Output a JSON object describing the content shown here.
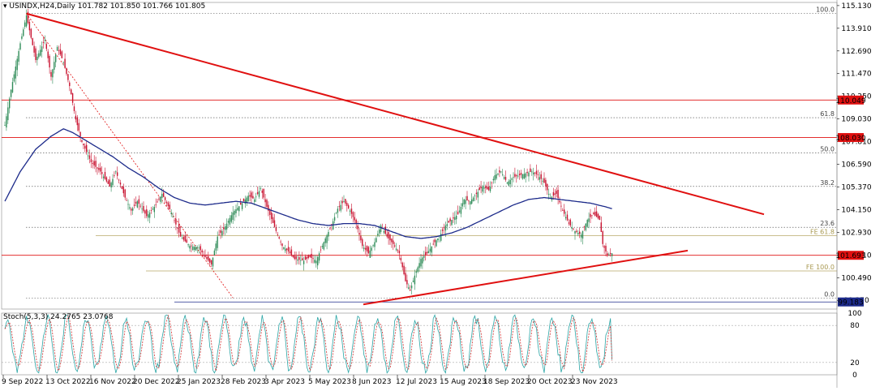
{
  "header": {
    "title": "USINDX,H24,Daily  101.782 101.850 101.766 101.805"
  },
  "colors": {
    "bull": "#2e8b57",
    "bear": "#c8102e",
    "ma": "#1c2a8a",
    "trend": "#e01010",
    "fib_dot": "#444444",
    "fe_line": "#b8a968",
    "hline": "#e01010",
    "stoch_main": "#2aa5a5",
    "stoch_signal": "#d03030"
  },
  "chart_data": {
    "type": "candlestick",
    "symbol": "USINDX,H24,Daily",
    "ohlc_last": {
      "open": 101.782,
      "high": 101.85,
      "low": 101.766,
      "close": 101.805
    },
    "ylim": [
      98.8,
      115.3
    ],
    "y_ticks": [
      "115.130",
      "113.910",
      "112.690",
      "111.470",
      "110.250",
      "109.030",
      "107.810",
      "106.590",
      "105.370",
      "104.150",
      "102.930",
      "101.710",
      "100.490",
      "99.270"
    ],
    "x_labels": [
      "9 Sep 2022",
      "13 Oct 2022",
      "16 Nov 2022",
      "20 Dec 2022",
      "25 Jan 2023",
      "28 Feb 2023",
      "3 Apr 2023",
      "5 May 2023",
      "8 Jun 2023",
      "12 Jul 2023",
      "15 Aug 2023",
      "18 Sep 2023",
      "20 Oct 2023",
      "23 Nov 2023"
    ],
    "price_anchors": [
      [
        0,
        108.7
      ],
      [
        4,
        110.6
      ],
      [
        10,
        113.1
      ],
      [
        14,
        114.6
      ],
      [
        20,
        112.2
      ],
      [
        26,
        113.3
      ],
      [
        30,
        111.3
      ],
      [
        34,
        112.9
      ],
      [
        38,
        112.1
      ],
      [
        42,
        110.8
      ],
      [
        46,
        109.0
      ],
      [
        50,
        107.8
      ],
      [
        56,
        106.7
      ],
      [
        62,
        106.2
      ],
      [
        68,
        105.4
      ],
      [
        72,
        106.2
      ],
      [
        78,
        104.8
      ],
      [
        82,
        104.1
      ],
      [
        86,
        104.6
      ],
      [
        92,
        103.8
      ],
      [
        98,
        104.4
      ],
      [
        102,
        105.0
      ],
      [
        108,
        104.0
      ],
      [
        114,
        102.7
      ],
      [
        120,
        102.2
      ],
      [
        126,
        102.1
      ],
      [
        130,
        101.6
      ],
      [
        134,
        101.2
      ],
      [
        138,
        102.7
      ],
      [
        142,
        103.1
      ],
      [
        148,
        104.0
      ],
      [
        154,
        104.5
      ],
      [
        158,
        104.9
      ],
      [
        162,
        104.7
      ],
      [
        166,
        105.3
      ],
      [
        170,
        104.3
      ],
      [
        176,
        103.0
      ],
      [
        180,
        102.2
      ],
      [
        184,
        101.9
      ],
      [
        188,
        101.5
      ],
      [
        194,
        101.4
      ],
      [
        198,
        101.6
      ],
      [
        202,
        101.4
      ],
      [
        208,
        102.6
      ],
      [
        212,
        103.3
      ],
      [
        216,
        104.2
      ],
      [
        220,
        104.6
      ],
      [
        224,
        104.1
      ],
      [
        228,
        103.4
      ],
      [
        232,
        102.2
      ],
      [
        236,
        101.8
      ],
      [
        240,
        102.4
      ],
      [
        244,
        103.3
      ],
      [
        248,
        102.7
      ],
      [
        252,
        102.3
      ],
      [
        256,
        101.8
      ],
      [
        260,
        100.3
      ],
      [
        263,
        99.8
      ],
      [
        266,
        100.6
      ],
      [
        270,
        101.5
      ],
      [
        274,
        101.8
      ],
      [
        278,
        102.3
      ],
      [
        282,
        102.7
      ],
      [
        286,
        103.3
      ],
      [
        290,
        103.6
      ],
      [
        294,
        103.9
      ],
      [
        298,
        104.7
      ],
      [
        302,
        104.6
      ],
      [
        306,
        105.0
      ],
      [
        310,
        105.4
      ],
      [
        314,
        105.2
      ],
      [
        318,
        106.0
      ],
      [
        322,
        106.2
      ],
      [
        326,
        105.6
      ],
      [
        330,
        105.9
      ],
      [
        334,
        106.0
      ],
      [
        338,
        106.1
      ],
      [
        342,
        106.2
      ],
      [
        346,
        106.0
      ],
      [
        350,
        105.6
      ],
      [
        354,
        104.8
      ],
      [
        358,
        105.0
      ],
      [
        362,
        104.1
      ],
      [
        366,
        103.4
      ],
      [
        370,
        103.0
      ],
      [
        374,
        102.8
      ],
      [
        378,
        103.6
      ],
      [
        382,
        103.9
      ],
      [
        386,
        103.6
      ],
      [
        388,
        102.3
      ],
      [
        391,
        101.7
      ],
      [
        394,
        101.8
      ]
    ],
    "ma_anchors": [
      [
        0,
        104.6
      ],
      [
        10,
        106.2
      ],
      [
        20,
        107.4
      ],
      [
        30,
        108.1
      ],
      [
        38,
        108.5
      ],
      [
        44,
        108.3
      ],
      [
        52,
        107.9
      ],
      [
        60,
        107.5
      ],
      [
        70,
        107.0
      ],
      [
        80,
        106.4
      ],
      [
        90,
        105.9
      ],
      [
        100,
        105.3
      ],
      [
        110,
        104.8
      ],
      [
        120,
        104.5
      ],
      [
        130,
        104.4
      ],
      [
        140,
        104.5
      ],
      [
        150,
        104.6
      ],
      [
        160,
        104.5
      ],
      [
        170,
        104.2
      ],
      [
        180,
        103.9
      ],
      [
        190,
        103.6
      ],
      [
        200,
        103.4
      ],
      [
        210,
        103.3
      ],
      [
        220,
        103.4
      ],
      [
        230,
        103.4
      ],
      [
        240,
        103.3
      ],
      [
        250,
        103.0
      ],
      [
        260,
        102.7
      ],
      [
        270,
        102.6
      ],
      [
        280,
        102.7
      ],
      [
        290,
        102.9
      ],
      [
        300,
        103.2
      ],
      [
        310,
        103.6
      ],
      [
        320,
        104.0
      ],
      [
        330,
        104.4
      ],
      [
        340,
        104.7
      ],
      [
        350,
        104.8
      ],
      [
        360,
        104.7
      ],
      [
        370,
        104.6
      ],
      [
        380,
        104.5
      ],
      [
        390,
        104.3
      ],
      [
        394,
        104.2
      ]
    ],
    "fib_levels": [
      {
        "label": "100.0",
        "price": 114.7
      },
      {
        "label": "61.8",
        "price": 109.1
      },
      {
        "label": "50.0",
        "price": 107.2
      },
      {
        "label": "38.2",
        "price": 105.4
      },
      {
        "label": "23.6",
        "price": 103.2
      },
      {
        "label": "0.0",
        "price": 99.4
      }
    ],
    "fe_levels": [
      {
        "label": "FE 61.8",
        "price": 102.75
      },
      {
        "label": "FE 100.0",
        "price": 100.85
      }
    ],
    "price_tags": [
      {
        "label": "110.049",
        "price": 110.049,
        "color": "#e01010"
      },
      {
        "label": "108.030",
        "price": 108.03,
        "color": "#e01010"
      },
      {
        "label": "101.693",
        "price": 101.693,
        "color": "#e01010"
      },
      {
        "label": "99.183",
        "price": 99.183,
        "color": "#1c2a8a"
      }
    ],
    "stoch": {
      "label": "Stoch(5,3,3) 24.2765 23.0768",
      "ylim": [
        0,
        100
      ],
      "ticks": [
        "100",
        "80",
        "20",
        "0"
      ]
    }
  }
}
